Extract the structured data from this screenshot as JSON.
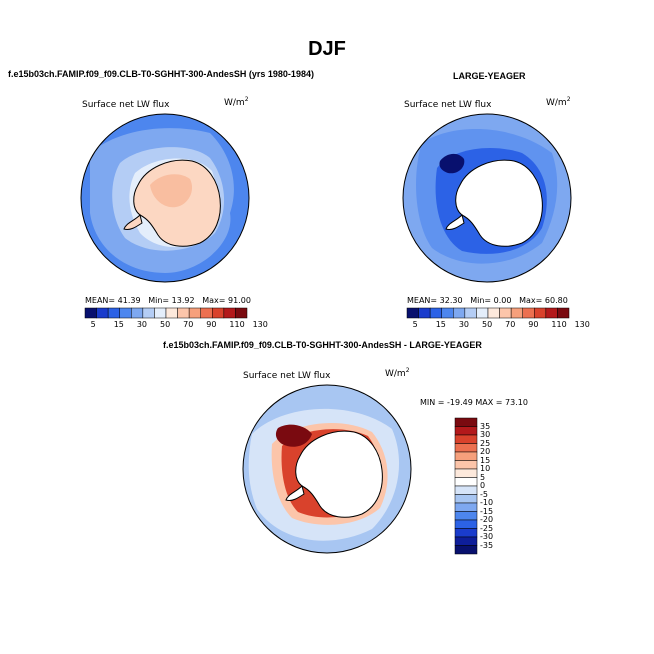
{
  "figure": {
    "title": "DJF",
    "left_run": "f.e15b03ch.FAMIP.f09_f09.CLB-T0-SGHHT-300-AndesSH (yrs 1980-1984)",
    "right_run": "LARGE-YEAGER",
    "diff_title": "f.e15b03ch.FAMIP.f09_f09.CLB-T0-SGHHT-300-AndesSH - LARGE-YEAGER"
  },
  "panels": {
    "variable": "Surface net LW flux",
    "units": "W/m",
    "units_exp": "2"
  },
  "left_stats": {
    "mean_label": "MEAN=",
    "mean": "41.39",
    "min_label": "Min=",
    "min": "13.92",
    "max_label": "Max=",
    "max": "91.00"
  },
  "right_stats": {
    "mean_label": "MEAN=",
    "mean": "32.30",
    "min_label": "Min=",
    "min": "0.00",
    "max_label": "Max=",
    "max": "60.80"
  },
  "diff_stats": {
    "text": "MIN = -19.49  MAX =  73.10"
  },
  "colorbar": {
    "ticks": [
      "5",
      "15",
      "30",
      "50",
      "70",
      "90",
      "110",
      "130"
    ],
    "colors": [
      "#08106e",
      "#1a3ccc",
      "#2c62e6",
      "#4d86ee",
      "#7ea8f0",
      "#b4cdf5",
      "#e4eefb",
      "#fde9dc",
      "#fcc5aa",
      "#f6a07c",
      "#ec7050",
      "#d9422c",
      "#b3191b",
      "#7a0a10"
    ]
  },
  "diff_colorbar": {
    "ticks": [
      "35",
      "30",
      "25",
      "20",
      "15",
      "10",
      "5",
      "0",
      "-5",
      "-10",
      "-15",
      "-20",
      "-25",
      "-30",
      "-35"
    ],
    "colors": [
      "#7a0a10",
      "#b3191b",
      "#d9422c",
      "#ec7050",
      "#f6a07c",
      "#fcc5aa",
      "#fde9dc",
      "#ffffff",
      "#d6e4f8",
      "#a8c6f2",
      "#7ea8f0",
      "#4d86ee",
      "#2c62e6",
      "#1a3ccc",
      "#0e1e9a",
      "#08106e"
    ]
  }
}
